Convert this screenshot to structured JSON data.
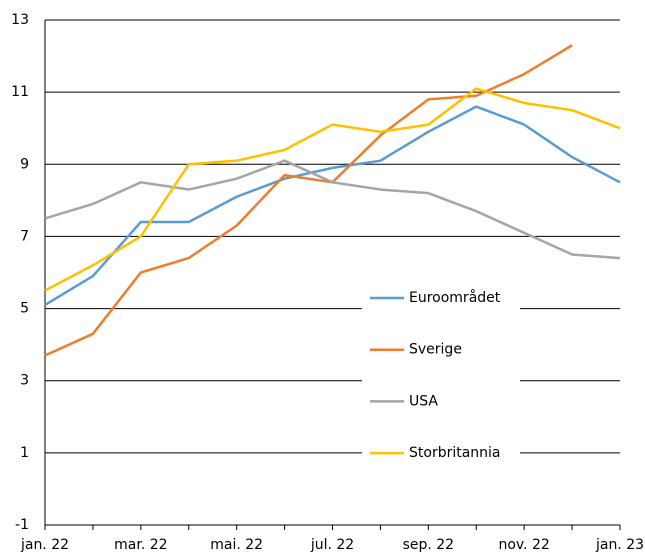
{
  "chart_data": {
    "type": "line",
    "categories": [
      "jan. 22",
      null,
      "mar. 22",
      null,
      "mai. 22",
      null,
      "jul. 22",
      null,
      "sep. 22",
      null,
      "nov. 22",
      null,
      "jan. 23"
    ],
    "series": [
      {
        "name": "Euroområdet",
        "color": "#5b9bd5",
        "values": [
          5.1,
          5.9,
          7.4,
          7.4,
          8.1,
          8.6,
          8.9,
          9.1,
          9.9,
          10.6,
          10.1,
          9.2,
          8.5
        ]
      },
      {
        "name": "Sverige",
        "color": "#ed7d31",
        "values": [
          3.7,
          4.3,
          6.0,
          6.4,
          7.3,
          8.7,
          8.5,
          9.8,
          10.8,
          10.9,
          11.5,
          12.3,
          null
        ]
      },
      {
        "name": "USA",
        "color": "#a5a5a5",
        "values": [
          7.5,
          7.9,
          8.5,
          8.3,
          8.6,
          9.1,
          8.5,
          8.3,
          8.2,
          7.7,
          7.1,
          6.5,
          6.4
        ]
      },
      {
        "name": "Storbritannia",
        "color": "#ffc000",
        "values": [
          5.5,
          6.2,
          7.0,
          9.0,
          9.1,
          9.4,
          10.1,
          9.9,
          10.1,
          11.1,
          10.7,
          10.5,
          10.0
        ]
      }
    ],
    "ylim": [
      -1,
      13
    ],
    "yticks": [
      -1,
      1,
      3,
      5,
      7,
      9,
      11,
      13
    ],
    "grid": true
  }
}
